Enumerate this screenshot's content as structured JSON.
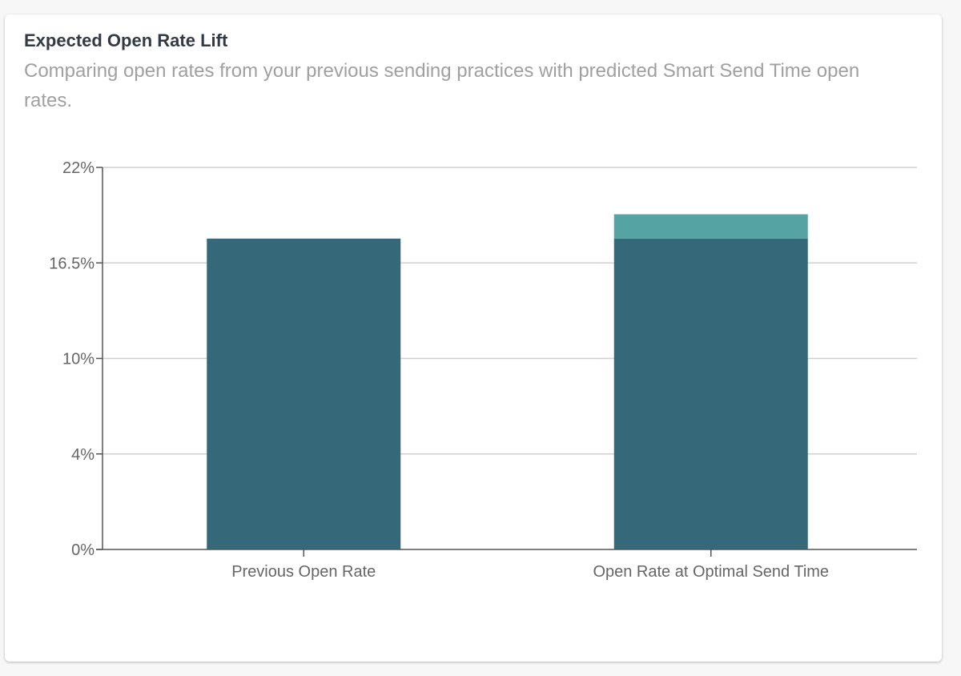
{
  "card": {
    "title": "Expected Open Rate Lift",
    "subtitle": "Comparing open rates from your previous sending practices with predicted Smart Send Time open rates."
  },
  "chart_data": {
    "type": "bar",
    "stacked": true,
    "categories": [
      "Previous Open Rate",
      "Open Rate at Optimal Send Time"
    ],
    "series": [
      {
        "values": [
          17.9,
          17.9
        ],
        "color": "#356878"
      },
      {
        "values": [
          0,
          1.4
        ],
        "color": "#56a3a3"
      }
    ],
    "ytick_labels": [
      "0%",
      "4%",
      "10%",
      "16.5%",
      "22%"
    ],
    "ylim": [
      0,
      22
    ],
    "grid": true,
    "legend": "none",
    "axis_color": "#555555",
    "grid_color": "#d0d0d0"
  }
}
